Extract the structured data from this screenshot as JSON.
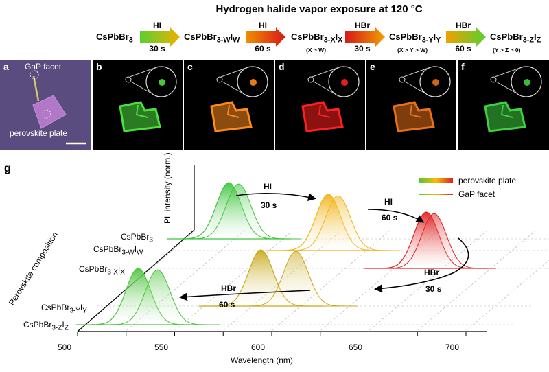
{
  "header": {
    "title": "Hydrogen halide vapor exposure at 120 °C",
    "compositions": [
      {
        "main": "CsPbBr",
        "sub": "3",
        "rest": "",
        "note": ""
      },
      {
        "main": "CsPbBr",
        "sub": "3-W",
        "rest": "I",
        "sub2": "W",
        "note": ""
      },
      {
        "main": "CsPbBr",
        "sub": "3-X",
        "rest": "I",
        "sub2": "X",
        "note": "(X > W)"
      },
      {
        "main": "CsPbBr",
        "sub": "3-Y",
        "rest": "I",
        "sub2": "Y",
        "note": "(X > Y > W)"
      },
      {
        "main": "CsPbBr",
        "sub": "3-Z",
        "rest": "I",
        "sub2": "Z",
        "note": "(Y > Z > 0)"
      }
    ],
    "arrows": [
      {
        "gas": "HI",
        "time": "30 s",
        "from": "#58d030",
        "to": "#f0b000"
      },
      {
        "gas": "HI",
        "time": "60 s",
        "from": "#f09000",
        "to": "#d81818"
      },
      {
        "gas": "HBr",
        "time": "30 s",
        "from": "#d81818",
        "to": "#f0a000"
      },
      {
        "gas": "HBr",
        "time": "60 s",
        "from": "#f0a000",
        "to": "#58d030"
      }
    ]
  },
  "panels": [
    {
      "letter": "a",
      "label_top": "GaP facet",
      "label_bottom": "perovskite plate"
    },
    {
      "letter": "b",
      "color": "#4ce03c"
    },
    {
      "letter": "c",
      "color": "#ff8a1c"
    },
    {
      "letter": "d",
      "color": "#ff2020"
    },
    {
      "letter": "e",
      "color": "#e8701a"
    },
    {
      "letter": "f",
      "color": "#40d040"
    }
  ],
  "chart_data": {
    "type": "area",
    "panel_letter": "g",
    "xlabel": "Wavelength (nm)",
    "zlabel": "PL intensity (norm.)",
    "ylabel": "Perovskite composition",
    "x_ticks": [
      500,
      550,
      600,
      650,
      700
    ],
    "xlim": [
      500,
      720
    ],
    "rows": [
      {
        "label_main": "CsPbBr",
        "label_sub": "3",
        "label_rest": "",
        "label_sub2": "",
        "peak_plate": 521,
        "peak_facet": 526,
        "color": "#3cc43c"
      },
      {
        "label_main": "CsPbBr",
        "label_sub": "3-W",
        "label_rest": "I",
        "label_sub2": "W",
        "peak_plate": 580,
        "peak_facet": 585,
        "color": "#f0b418"
      },
      {
        "label_main": "CsPbBr",
        "label_sub": "3-X",
        "label_rest": "I",
        "label_sub2": "X",
        "peak_plate": 640,
        "peak_facet": 644,
        "color": "#e02020"
      },
      {
        "label_main": "CsPbBr",
        "label_sub": "3-Y",
        "label_rest": "I",
        "label_sub2": "Y",
        "peak_plate": 581,
        "peak_facet": 599,
        "color": "#c8a818"
      },
      {
        "label_main": "CsPbBr",
        "label_sub": "3-Z",
        "label_rest": "I",
        "label_sub2": "Z",
        "peak_plate": 527,
        "peak_facet": 537,
        "color": "#4cc43c"
      }
    ],
    "annotations": [
      {
        "gas": "HI",
        "time": "30 s"
      },
      {
        "gas": "HI",
        "time": "60 s"
      },
      {
        "gas": "HBr",
        "time": "30 s"
      },
      {
        "gas": "HBr",
        "time": "60 s"
      }
    ],
    "legend": [
      {
        "name": "perovskite plate"
      },
      {
        "name": "GaP facet"
      }
    ],
    "legend_placement": "top-right"
  }
}
